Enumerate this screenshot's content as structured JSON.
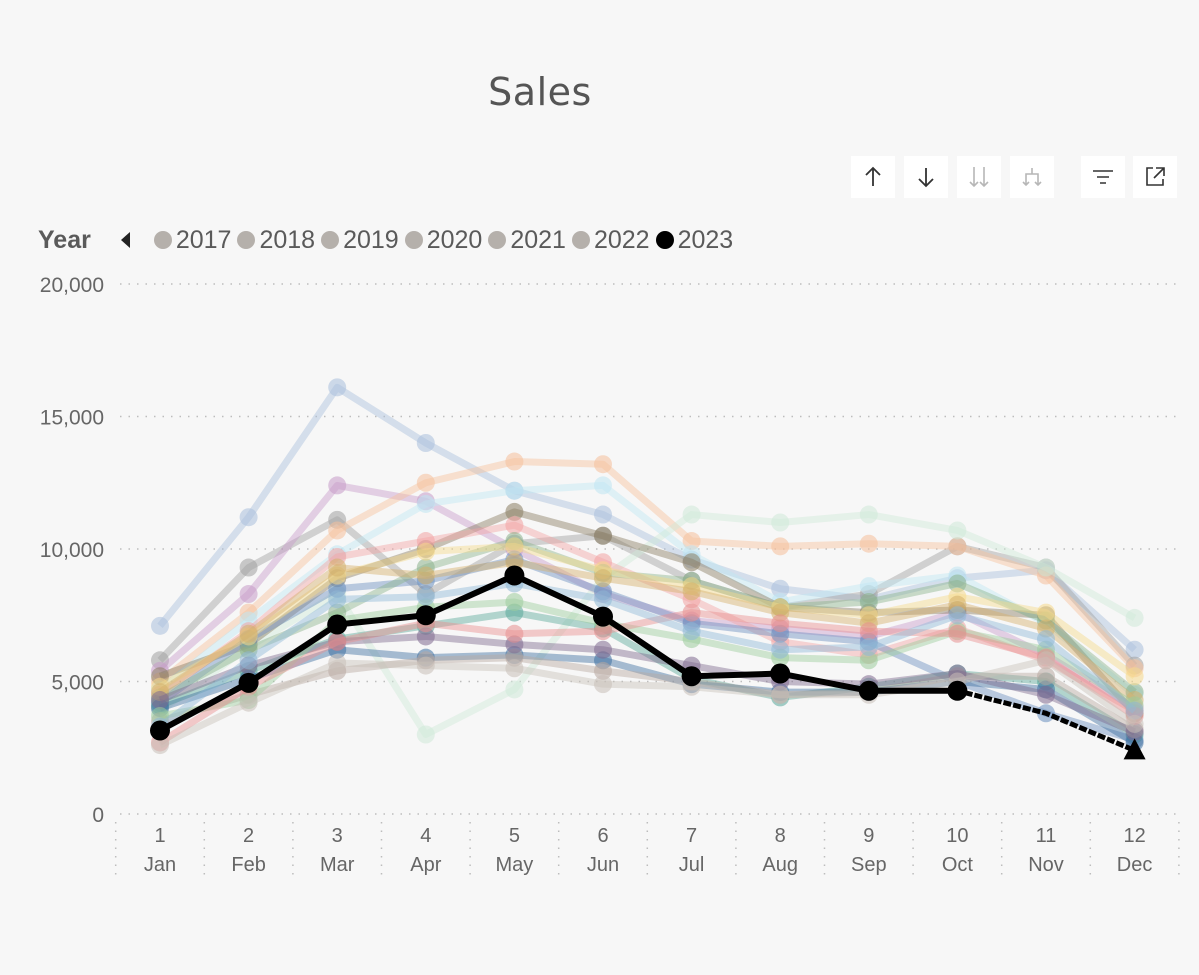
{
  "title": "Sales",
  "toolbar": {
    "buttons": [
      {
        "name": "sort-ascending-icon",
        "enabled": true
      },
      {
        "name": "sort-descending-icon",
        "enabled": true
      },
      {
        "name": "expand-all-down-icon",
        "enabled": false
      },
      {
        "name": "drill-down-fork-icon",
        "enabled": false
      },
      {
        "name": "filter-icon",
        "enabled": true
      },
      {
        "name": "focus-mode-icon",
        "enabled": true
      }
    ]
  },
  "legend": {
    "title": "Year",
    "items": [
      {
        "label": "2017",
        "color": "#b5b0ab"
      },
      {
        "label": "2018",
        "color": "#b5b0ab"
      },
      {
        "label": "2019",
        "color": "#b5b0ab"
      },
      {
        "label": "2020",
        "color": "#b5b0ab"
      },
      {
        "label": "2021",
        "color": "#b5b0ab"
      },
      {
        "label": "2022",
        "color": "#b5b0ab"
      },
      {
        "label": "2023",
        "color": "#000000"
      }
    ]
  },
  "chart_data": {
    "type": "line",
    "title": "Sales",
    "x": [
      1,
      2,
      3,
      4,
      5,
      6,
      7,
      8,
      9,
      10,
      11,
      12
    ],
    "x_month_labels": [
      "Jan",
      "Feb",
      "Mar",
      "Apr",
      "May",
      "Jun",
      "Jul",
      "Aug",
      "Sep",
      "Oct",
      "Nov",
      "Dec"
    ],
    "ylim": [
      0,
      20000
    ],
    "yticks": [
      0,
      5000,
      10000,
      15000,
      20000
    ],
    "ytick_labels": [
      "0",
      "5,000",
      "10,000",
      "15,000",
      "20,000"
    ],
    "grid": true,
    "legend_position": "top-left",
    "highlight_series": {
      "name": "2023",
      "color": "#000000",
      "values": [
        3150,
        4950,
        7150,
        7500,
        9000,
        7450,
        5200,
        5300,
        4650,
        4650
      ],
      "forecast_values": [
        4650,
        3800,
        2400
      ]
    },
    "background_series": [
      {
        "color": "#a9bfdc",
        "values": [
          7100,
          11200,
          16100,
          14000,
          12200,
          11300,
          9600,
          8500,
          8100,
          8900,
          9200,
          6200
        ]
      },
      {
        "color": "#a0a0a0",
        "values": [
          5800,
          9300,
          11100,
          8300,
          10200,
          10500,
          8800,
          7800,
          8300,
          10100,
          9300,
          5600
        ]
      },
      {
        "color": "#c79bc9",
        "values": [
          5400,
          8300,
          12400,
          11800,
          10000,
          8300,
          7300,
          7000,
          6700,
          7600,
          6000,
          4000
        ]
      },
      {
        "color": "#f6c09b",
        "values": [
          5000,
          7600,
          10700,
          12500,
          13300,
          13200,
          10300,
          10100,
          10200,
          10100,
          9000,
          5500
        ]
      },
      {
        "color": "#bfe6f2",
        "values": [
          4700,
          7300,
          9800,
          11700,
          12200,
          12400,
          9800,
          8000,
          8600,
          9000,
          7200,
          4500
        ]
      },
      {
        "color": "#cfe9d8",
        "values": [
          3900,
          6300,
          8300,
          3000,
          4700,
          8900,
          11300,
          11000,
          11300,
          10700,
          9300,
          7400
        ]
      },
      {
        "color": "#8a7d62",
        "values": [
          5200,
          6400,
          8900,
          10000,
          11400,
          10500,
          9500,
          7800,
          7600,
          7700,
          7500,
          3800
        ]
      },
      {
        "color": "#f2a3a3",
        "values": [
          4500,
          6900,
          9700,
          10300,
          10900,
          9500,
          8100,
          6500,
          6000,
          7000,
          5800,
          3900
        ]
      },
      {
        "color": "#6a8fbf",
        "values": [
          4200,
          6600,
          8500,
          8800,
          9600,
          8400,
          7200,
          6800,
          6500,
          5000,
          3800,
          2800
        ]
      },
      {
        "color": "#5aa89a",
        "values": [
          4100,
          5400,
          6600,
          7100,
          7600,
          7000,
          5100,
          4400,
          4800,
          5300,
          5000,
          3000
        ]
      },
      {
        "color": "#8cb38c",
        "values": [
          4400,
          6200,
          7600,
          9300,
          10300,
          9100,
          8800,
          7800,
          8000,
          8700,
          7300,
          4600
        ]
      },
      {
        "color": "#f5d98a",
        "values": [
          4800,
          6700,
          9000,
          9900,
          10100,
          9200,
          8600,
          7800,
          7500,
          8200,
          7600,
          5200
        ]
      },
      {
        "color": "#3e6fa0",
        "values": [
          4000,
          5100,
          6200,
          5900,
          6000,
          5800,
          4900,
          4600,
          4600,
          5000,
          4700,
          2700
        ]
      },
      {
        "color": "#b8a8a0",
        "values": [
          3500,
          4500,
          5400,
          5800,
          5900,
          5400,
          5000,
          4500,
          4600,
          5200,
          5200,
          3200
        ]
      },
      {
        "color": "#d4b06b",
        "values": [
          4600,
          6800,
          9300,
          9000,
          9500,
          8900,
          8400,
          7600,
          7200,
          7900,
          7000,
          4300
        ]
      },
      {
        "color": "#7f6a8f",
        "values": [
          4300,
          5600,
          6500,
          6700,
          6400,
          6200,
          5600,
          5000,
          4900,
          5300,
          4500,
          3100
        ]
      },
      {
        "color": "#9ccc9c",
        "values": [
          3700,
          4300,
          7300,
          7800,
          8000,
          7200,
          6600,
          5900,
          5800,
          6900,
          6200,
          4100
        ]
      },
      {
        "color": "#e88f8f",
        "values": [
          2700,
          4800,
          6500,
          7200,
          6800,
          6900,
          7600,
          7200,
          6900,
          6800,
          5900,
          3700
        ]
      },
      {
        "color": "#8fb8d6",
        "values": [
          3300,
          5800,
          8100,
          8200,
          8700,
          8100,
          6900,
          6200,
          6300,
          7500,
          6600,
          3900
        ]
      },
      {
        "color": "#c8c0b8",
        "values": [
          2600,
          4200,
          5700,
          5600,
          5500,
          4900,
          4800,
          4500,
          4500,
          5000,
          5800,
          3400
        ]
      }
    ]
  }
}
